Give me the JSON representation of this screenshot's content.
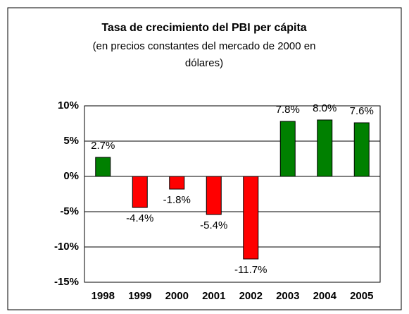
{
  "chart_data": {
    "type": "bar",
    "title": "Tasa de crecimiento del PBI per cápita",
    "subtitle": [
      "(en precios constantes del mercado de 2000 en",
      "dólares)"
    ],
    "categories": [
      "1998",
      "1999",
      "2000",
      "2001",
      "2002",
      "2003",
      "2004",
      "2005"
    ],
    "values": [
      2.7,
      -4.4,
      -1.8,
      -5.4,
      -11.7,
      7.8,
      8.0,
      7.6
    ],
    "value_labels": [
      "2.7%",
      "-4.4%",
      "-1.8%",
      "-5.4%",
      "-11.7%",
      "7.8%",
      "8.0%",
      "7.6%"
    ],
    "colors": [
      "#008000",
      "#ff0000",
      "#ff0000",
      "#ff0000",
      "#ff0000",
      "#008000",
      "#008000",
      "#008000"
    ],
    "ylim": [
      -15,
      10
    ],
    "yticks": [
      {
        "value": -15,
        "label": "-15%"
      },
      {
        "value": -10,
        "label": "-10%"
      },
      {
        "value": -5,
        "label": "-5%"
      },
      {
        "value": 0,
        "label": "0%"
      },
      {
        "value": 5,
        "label": "5%"
      },
      {
        "value": 10,
        "label": "10%"
      }
    ],
    "grid": true
  }
}
